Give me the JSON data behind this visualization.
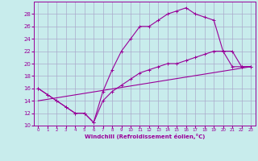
{
  "xlabel": "Windchill (Refroidissement éolien,°C)",
  "bg_color": "#c8ecec",
  "line_color": "#990099",
  "grid_color": "#aaaacc",
  "xlim": [
    -0.5,
    23.5
  ],
  "ylim": [
    10,
    30
  ],
  "yticks": [
    10,
    12,
    14,
    16,
    18,
    20,
    22,
    24,
    26,
    28
  ],
  "xticks": [
    0,
    1,
    2,
    3,
    4,
    5,
    6,
    7,
    8,
    9,
    10,
    11,
    12,
    13,
    14,
    15,
    16,
    17,
    18,
    19,
    20,
    21,
    22,
    23
  ],
  "line1_x": [
    0,
    1,
    2,
    3,
    4,
    5,
    6,
    7,
    8,
    9,
    10,
    11,
    12,
    13,
    14,
    15,
    16,
    17,
    18,
    19,
    20,
    21,
    22,
    23
  ],
  "line1_y": [
    16,
    15,
    14,
    13,
    12,
    12,
    10.5,
    15.5,
    19,
    22,
    24,
    26,
    26,
    27,
    28,
    28.5,
    29,
    28,
    27.5,
    27,
    22,
    19.5,
    19.5,
    19.5
  ],
  "line2_x": [
    0,
    1,
    2,
    3,
    4,
    5,
    6,
    7,
    8,
    9,
    10,
    11,
    12,
    13,
    14,
    15,
    16,
    17,
    18,
    19,
    20,
    21,
    22,
    23
  ],
  "line2_y": [
    16,
    15,
    14,
    13,
    12,
    12,
    10.5,
    14,
    15.5,
    16.5,
    17.5,
    18.5,
    19,
    19.5,
    20,
    20,
    20.5,
    21,
    21.5,
    22,
    22,
    22,
    19.5,
    19.5
  ],
  "line3_x": [
    0,
    23
  ],
  "line3_y": [
    14,
    19.5
  ],
  "marker_size": 2.5,
  "line_width": 0.8
}
